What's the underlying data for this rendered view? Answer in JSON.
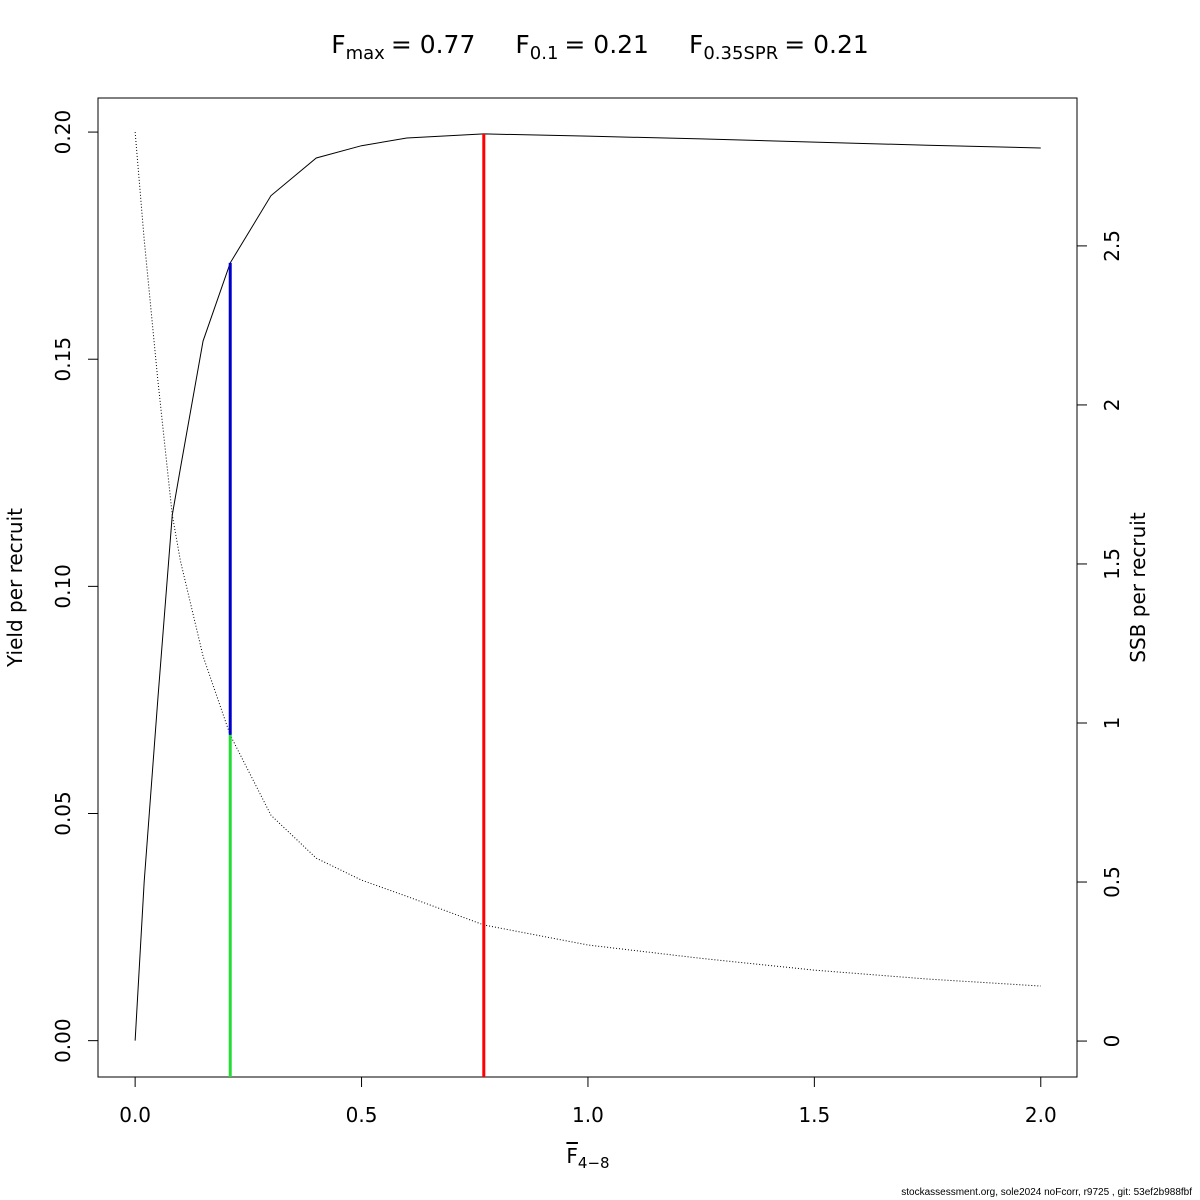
{
  "chart_data": {
    "type": "line",
    "title_parts": [
      {
        "symbol": "F",
        "subscript": "max",
        "text": "= 0.77"
      },
      {
        "symbol": "F",
        "subscript": "0.1",
        "text": "= 0.21"
      },
      {
        "symbol": "F",
        "subscript": "0.35SPR",
        "text": "= 0.21"
      }
    ],
    "xlabel": {
      "symbol": "F",
      "subscript": "4−8"
    },
    "ylabel": "Yield per recruit",
    "y2label": "SSB per recruit",
    "footer": "stockassessment.org, sole2024  noFcorr, r9725 , git: 53ef2b988fbf",
    "x": [
      0,
      0.02,
      0.05,
      0.082,
      0.1,
      0.15,
      0.21,
      0.3,
      0.4,
      0.5,
      0.6,
      0.77,
      1.0,
      1.25,
      1.5,
      1.75,
      2.0
    ],
    "series": [
      {
        "color": "#000000",
        "dash": "solid",
        "axis": "y",
        "values": [
          0,
          0.035,
          0.075,
          0.1157,
          0.126,
          0.154,
          0.1712,
          0.186,
          0.1943,
          0.197,
          0.1987,
          0.1996,
          0.1991,
          0.1985,
          0.1978,
          0.1971,
          0.1965
        ]
      },
      {
        "color": "#000000",
        "dash": "dotted",
        "axis": "y2",
        "values": [
          2.858,
          2.52,
          2.08,
          1.654,
          1.51,
          1.21,
          0.962,
          0.71,
          0.575,
          0.506,
          0.455,
          0.365,
          0.302,
          0.26,
          0.223,
          0.195,
          0.173
        ]
      }
    ],
    "reference_lines": [
      {
        "x": 0.77,
        "color": "#ff0000",
        "y_range": [
          -0.008,
          0.1996
        ]
      },
      {
        "x": 0.21,
        "color": "#0000cc",
        "y_range": [
          0.0673,
          0.1712
        ]
      },
      {
        "x": 0.21,
        "color": "#22dd33",
        "y_range": [
          -0.008,
          0.0673
        ]
      }
    ],
    "xlim": [
      -0.082,
      2.08
    ],
    "ylim": [
      -0.008,
      0.2075
    ],
    "y2lim": [
      -0.113,
      2.965
    ],
    "xticks": [
      {
        "value": 0,
        "label": "0.0"
      },
      {
        "value": 0.5,
        "label": "0.5"
      },
      {
        "value": 1,
        "label": "1.0"
      },
      {
        "value": 1.5,
        "label": "1.5"
      },
      {
        "value": 2,
        "label": "2.0"
      }
    ],
    "yticks": [
      {
        "value": 0,
        "label": "0.00"
      },
      {
        "value": 0.05,
        "label": "0.05"
      },
      {
        "value": 0.1,
        "label": "0.10"
      },
      {
        "value": 0.15,
        "label": "0.15"
      },
      {
        "value": 0.2,
        "label": "0.20"
      }
    ],
    "y2ticks": [
      0,
      0.5,
      1,
      1.5,
      2,
      2.5
    ],
    "grid": false
  }
}
